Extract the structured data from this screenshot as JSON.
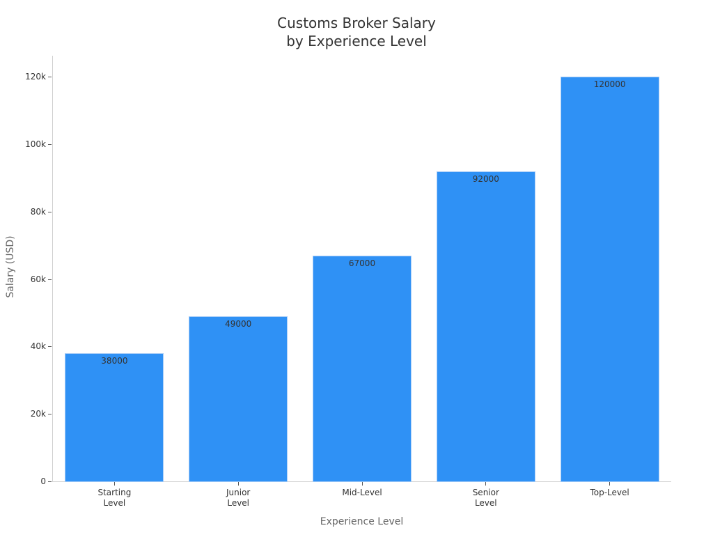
{
  "chart_data": {
    "type": "bar",
    "title": "Customs Broker Salary\nby Experience Level",
    "title_lines": [
      "Customs Broker Salary",
      "by Experience Level"
    ],
    "xlabel": "Experience Level",
    "ylabel": "Salary (USD)",
    "categories": [
      "Starting Level",
      "Junior Level",
      "Mid-Level",
      "Senior Level",
      "Top-Level"
    ],
    "category_labels": [
      "Starting\nLevel",
      "Junior\nLevel",
      "Mid-Level",
      "Senior\nLevel",
      "Top-Level"
    ],
    "values": [
      38000,
      49000,
      67000,
      92000,
      120000
    ],
    "data_labels": [
      "38000",
      "49000",
      "67000",
      "92000",
      "120000"
    ],
    "yticks": [
      0,
      20000,
      40000,
      60000,
      80000,
      100000,
      120000
    ],
    "ytick_labels": [
      "0",
      "20k",
      "40k",
      "60k",
      "80k",
      "100k",
      "120k"
    ],
    "ylim": [
      0,
      126000
    ],
    "grid": false,
    "legend": "none",
    "bar_color": "#2f91f5"
  }
}
